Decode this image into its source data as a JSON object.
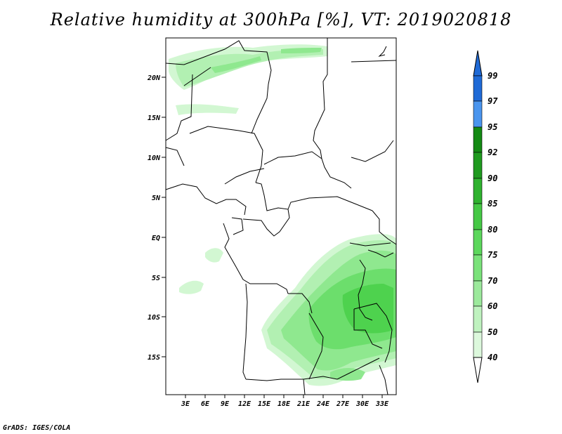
{
  "title": "Relative humidity at 300hPa [%], VT: 2019020818",
  "credit": "GrADS: IGES/COLA",
  "map": {
    "lat_ticks": [
      "20N",
      "15N",
      "10N",
      "5N",
      "EQ",
      "5S",
      "10S",
      "15S"
    ],
    "lon_ticks": [
      "3E",
      "6E",
      "9E",
      "12E",
      "15E",
      "18E",
      "21E",
      "24E",
      "27E",
      "30E",
      "33E"
    ]
  },
  "colorbar": {
    "labels": [
      "99",
      "97",
      "95",
      "92",
      "90",
      "85",
      "80",
      "75",
      "70",
      "60",
      "50",
      "40"
    ],
    "colors": [
      "#1f6ad6",
      "#2f7ee6",
      "#4a95ee",
      "#138a13",
      "#22a022",
      "#36b836",
      "#4ed24e",
      "#6cde6c",
      "#8fe88f",
      "#b2f0b2",
      "#d2f7d2",
      "#ecfcec"
    ]
  }
}
